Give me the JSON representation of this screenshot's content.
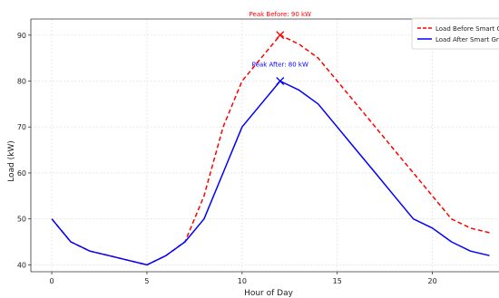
{
  "chart_data": {
    "type": "line",
    "title": "",
    "xlabel": "Hour of Day",
    "ylabel": "Load (kW)",
    "xlim": [
      -1.1,
      23.5
    ],
    "ylim": [
      38.5,
      93.5
    ],
    "xticks": [
      0,
      5,
      10,
      15,
      20
    ],
    "yticks": [
      40,
      50,
      60,
      70,
      80,
      90
    ],
    "grid": true,
    "legend_position": "top-right",
    "series": [
      {
        "name": "Load Before Smart Grid",
        "color": "#ff0000",
        "style": "dashed",
        "x": [
          0,
          1,
          2,
          3,
          4,
          5,
          6,
          7,
          8,
          9,
          10,
          11,
          12,
          13,
          14,
          15,
          16,
          17,
          18,
          19,
          20,
          21,
          22,
          23
        ],
        "y": [
          50,
          45,
          43,
          42,
          41,
          40,
          42,
          45,
          55,
          70,
          80,
          85,
          90,
          88,
          85,
          80,
          75,
          70,
          65,
          60,
          55,
          50,
          48,
          47
        ]
      },
      {
        "name": "Load After Smart Grid",
        "color": "#0000ff",
        "style": "solid",
        "x": [
          0,
          1,
          2,
          3,
          4,
          5,
          6,
          7,
          8,
          9,
          10,
          11,
          12,
          13,
          14,
          15,
          16,
          17,
          18,
          19,
          20,
          21,
          22,
          23
        ],
        "y": [
          50,
          45,
          43,
          42,
          41,
          40,
          42,
          45,
          50,
          60,
          70,
          75,
          80,
          78,
          75,
          70,
          65,
          60,
          55,
          50,
          48,
          45,
          43,
          42
        ]
      }
    ],
    "annotations": [
      {
        "text": "Peak Before: 90 kW",
        "x": 12,
        "y": 90,
        "color": "#ff0000",
        "marker": "x"
      },
      {
        "text": "Peak After: 80 kW",
        "x": 12,
        "y": 80,
        "color": "#0000ff",
        "marker": "x"
      }
    ]
  }
}
